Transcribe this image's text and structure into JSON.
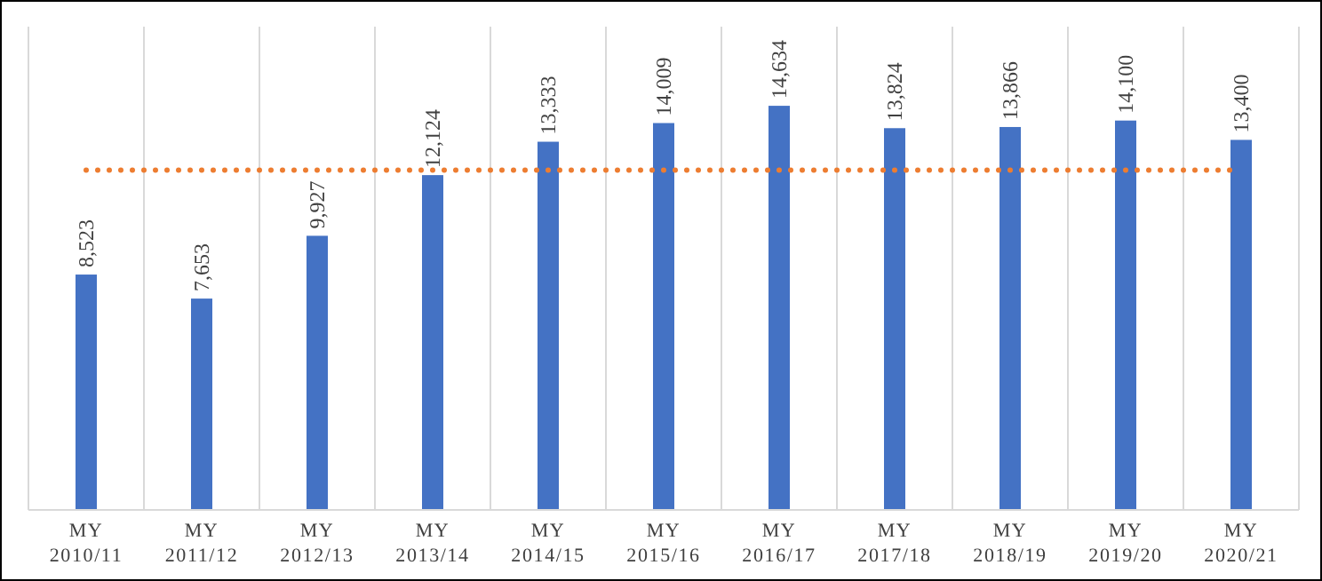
{
  "chart_data": {
    "type": "bar",
    "categories": [
      "MY\n2010/11",
      "MY\n2011/12",
      "MY\n2012/13",
      "MY\n2013/14",
      "MY\n2014/15",
      "MY\n2015/16",
      "MY\n2016/17",
      "MY\n2017/18",
      "MY\n2018/19",
      "MY\n2019/20",
      "MY\n2020/21"
    ],
    "values": [
      8523,
      7653,
      9927,
      12124,
      13333,
      14009,
      14634,
      13824,
      13866,
      14100,
      13400
    ],
    "color": "#4472c4",
    "value_labels": [
      "8,523",
      "7,653",
      "9,927",
      "12,124",
      "13,333",
      "14,009",
      "14,634",
      "13,824",
      "13,866",
      "14,100",
      "13,400"
    ],
    "ylim": [
      0,
      17500
    ],
    "tick_labels": "x",
    "grid": "x",
    "ref_lines": [
      {
        "axis": "y",
        "value": 12308,
        "color": "#ed7d31",
        "line_style": "dotted"
      }
    ]
  }
}
